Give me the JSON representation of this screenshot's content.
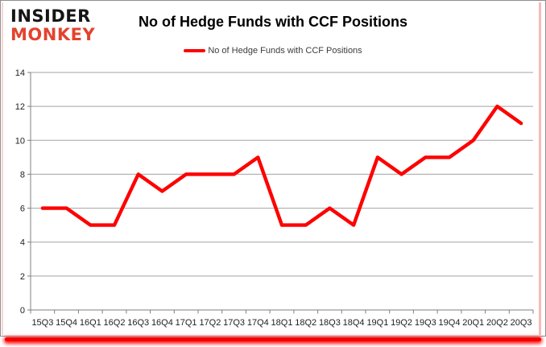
{
  "logo": {
    "line1": "INSIDER",
    "line2": "MONKEY"
  },
  "header": {
    "title": "No of Hedge Funds with CCF Positions"
  },
  "legend": {
    "label": "No of Hedge Funds with CCF Positions"
  },
  "colors": {
    "line": "#fe0000",
    "logo_black": "#151515",
    "logo_red": "#e2432e",
    "gridline": "#a3a3a3",
    "axis": "#7f7f7f",
    "axis_label": "#1e1e1e",
    "bottom_glow": "#f40000"
  },
  "chart_data": {
    "type": "line",
    "title": "No of Hedge Funds with CCF Positions",
    "xlabel": "",
    "ylabel": "",
    "categories": [
      "15Q3",
      "15Q4",
      "16Q1",
      "16Q2",
      "16Q3",
      "16Q4",
      "17Q1",
      "17Q2",
      "17Q3",
      "17Q4",
      "18Q1",
      "18Q2",
      "18Q3",
      "18Q4",
      "19Q1",
      "19Q2",
      "19Q3",
      "19Q4",
      "20Q1",
      "20Q2",
      "20Q3"
    ],
    "series": [
      {
        "name": "No of Hedge Funds with CCF Positions",
        "color": "#fe0000",
        "values": [
          6,
          6,
          5,
          5,
          8,
          7,
          8,
          8,
          8,
          9,
          5,
          5,
          6,
          5,
          9,
          8,
          9,
          9,
          10,
          12,
          11
        ]
      }
    ],
    "ylim": [
      0,
      14
    ],
    "ytick_step": 2,
    "grid": true,
    "legend_position": "top-center"
  }
}
